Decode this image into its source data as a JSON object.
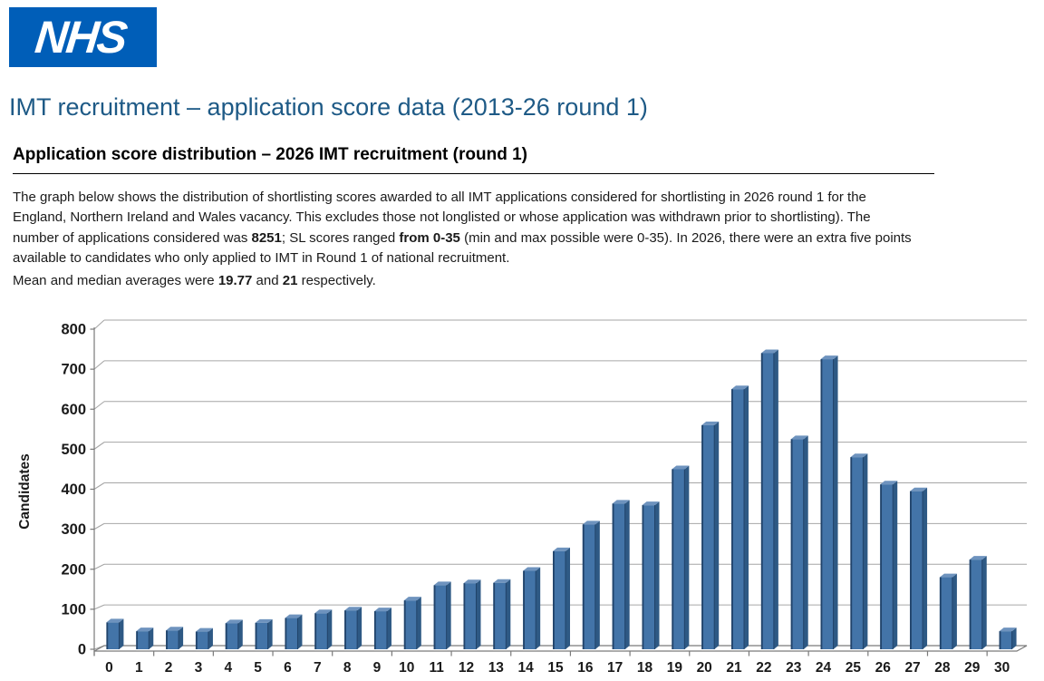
{
  "header": {
    "logo_text": "NHS",
    "logo_color": "#005EB8",
    "title": "IMT recruitment – application score data (2013-26 round 1)",
    "title_color": "#1E5A86"
  },
  "section": {
    "heading": "Application score distribution – 2026 IMT recruitment (round 1)",
    "paragraph_lines": [
      [
        {
          "text": "The graph below shows the distribution of shortlisting scores awarded to all IMT applications considered for shortlisting in 2026 round 1 for the",
          "bold": false
        }
      ],
      [
        {
          "text": "England, Northern Ireland and Wales vacancy. This excludes those not longlisted or whose application was withdrawn prior to shortlisting). The",
          "bold": false
        }
      ],
      [
        {
          "text": "number of applications considered was ",
          "bold": false
        },
        {
          "text": "8251",
          "bold": true
        },
        {
          "text": "; SL scores ranged ",
          "bold": false
        },
        {
          "text": "from 0-35",
          "bold": true
        },
        {
          "text": " (min and max possible were 0-35). In 2026, there were an extra five points",
          "bold": false
        }
      ],
      [
        {
          "text": "available to candidates who only applied to IMT in Round 1 of national recruitment.",
          "bold": false
        }
      ]
    ],
    "mean_line": [
      {
        "text": "Mean and median averages were ",
        "bold": false
      },
      {
        "text": "19.77",
        "bold": true
      },
      {
        "text": " and ",
        "bold": false
      },
      {
        "text": "21",
        "bold": true
      },
      {
        "text": " respectively.",
        "bold": false
      }
    ]
  },
  "chart_data": {
    "type": "bar",
    "title": "",
    "xlabel": "",
    "ylabel": "Candidates",
    "categories": [
      "0",
      "1",
      "2",
      "3",
      "4",
      "5",
      "6",
      "7",
      "8",
      "9",
      "10",
      "11",
      "12",
      "13",
      "14",
      "15",
      "16",
      "17",
      "18",
      "19",
      "20",
      "21",
      "22",
      "23",
      "24",
      "25",
      "26",
      "27",
      "28",
      "29",
      "30"
    ],
    "values": [
      67,
      45,
      47,
      44,
      65,
      66,
      78,
      90,
      97,
      95,
      122,
      160,
      165,
      166,
      196,
      245,
      312,
      364,
      360,
      450,
      560,
      650,
      740,
      525,
      725,
      480,
      412,
      395,
      180,
      224,
      45
    ],
    "ylim": [
      0,
      800
    ],
    "ytick_step": 100,
    "grid": true,
    "legend": false,
    "style_3d": true,
    "colors": {
      "bar_front": "#4374A8",
      "bar_side": "#2E5984",
      "bar_top": "#6E93BE",
      "bar_edge": "#21436A",
      "gridline": "#A6A6A6",
      "axis": "#7A7A7A",
      "tick_label": "#1A1A1A"
    }
  }
}
